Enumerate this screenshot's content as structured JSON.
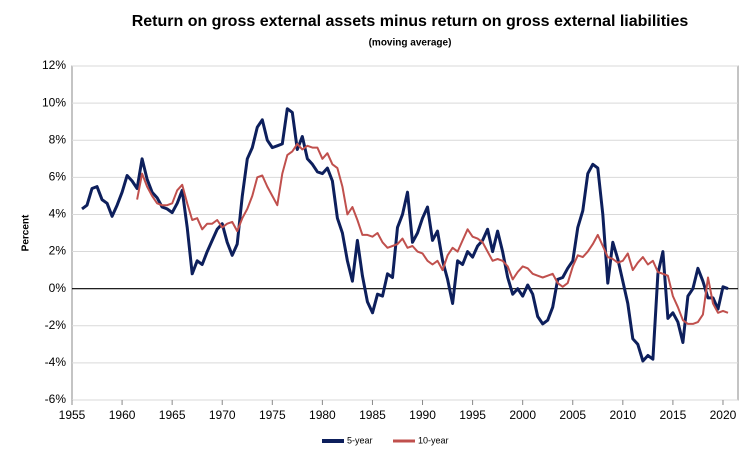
{
  "chart_data": {
    "type": "line",
    "title": "Return on gross external assets minus return on gross external liabilities",
    "subtitle": "(moving average)",
    "ylabel": "Percent",
    "xlim": [
      1955,
      2021.5
    ],
    "xticks": [
      1955,
      1960,
      1965,
      1970,
      1975,
      1980,
      1985,
      1990,
      1995,
      2000,
      2005,
      2010,
      2015,
      2020
    ],
    "ylim": [
      -6,
      12
    ],
    "yticks": [
      {
        "value": -6,
        "label": "-6%"
      },
      {
        "value": -4,
        "label": "-4%"
      },
      {
        "value": -2,
        "label": "-2%"
      },
      {
        "value": 0,
        "label": "0%"
      },
      {
        "value": 2,
        "label": "2%"
      },
      {
        "value": 4,
        "label": "4%"
      },
      {
        "value": 6,
        "label": "6%"
      },
      {
        "value": 8,
        "label": "8%"
      },
      {
        "value": 10,
        "label": "10%"
      },
      {
        "value": 12,
        "label": "12%"
      }
    ],
    "grid": true,
    "legend": "bottom",
    "x": [
      1956,
      1956.5,
      1957,
      1957.5,
      1958,
      1958.5,
      1959,
      1959.5,
      1960,
      1960.5,
      1961,
      1961.5,
      1962,
      1962.5,
      1963,
      1963.5,
      1964,
      1964.5,
      1965,
      1965.5,
      1966,
      1966.5,
      1967,
      1967.5,
      1968,
      1968.5,
      1969,
      1969.5,
      1970,
      1970.5,
      1971,
      1971.5,
      1972,
      1972.5,
      1973,
      1973.5,
      1974,
      1974.5,
      1975,
      1975.5,
      1976,
      1976.5,
      1977,
      1977.5,
      1978,
      1978.5,
      1979,
      1979.5,
      1980,
      1980.5,
      1981,
      1981.5,
      1982,
      1982.5,
      1983,
      1983.5,
      1984,
      1984.5,
      1985,
      1985.5,
      1986,
      1986.5,
      1987,
      1987.5,
      1988,
      1988.5,
      1989,
      1989.5,
      1990,
      1990.5,
      1991,
      1991.5,
      1992,
      1992.5,
      1993,
      1993.5,
      1994,
      1994.5,
      1995,
      1995.5,
      1996,
      1996.5,
      1997,
      1997.5,
      1998,
      1998.5,
      1999,
      1999.5,
      2000,
      2000.5,
      2001,
      2001.5,
      2002,
      2002.5,
      2003,
      2003.5,
      2004,
      2004.5,
      2005,
      2005.5,
      2006,
      2006.5,
      2007,
      2007.5,
      2008,
      2008.5,
      2009,
      2009.5,
      2010,
      2010.5,
      2011,
      2011.5,
      2012,
      2012.5,
      2013,
      2013.5,
      2014,
      2014.5,
      2015,
      2015.5,
      2016,
      2016.5,
      2017,
      2017.5,
      2018,
      2018.5,
      2019,
      2019.5,
      2020,
      2020.5
    ],
    "series": [
      {
        "name": "5-year",
        "color": "#0d1f5c",
        "width": 3,
        "values": [
          4.3,
          4.5,
          5.4,
          5.5,
          4.8,
          4.6,
          3.9,
          4.5,
          5.2,
          6.1,
          5.8,
          5.4,
          7.0,
          5.9,
          5.2,
          4.9,
          4.4,
          4.3,
          4.1,
          4.6,
          5.3,
          3.3,
          0.8,
          1.5,
          1.3,
          2.0,
          2.6,
          3.2,
          3.5,
          2.5,
          1.8,
          2.4,
          5.0,
          7.0,
          7.6,
          8.7,
          9.1,
          8.0,
          7.6,
          7.7,
          7.8,
          9.7,
          9.5,
          7.5,
          8.2,
          7.0,
          6.7,
          6.3,
          6.2,
          6.5,
          5.8,
          3.8,
          3.0,
          1.5,
          0.4,
          2.6,
          0.7,
          -0.7,
          -1.3,
          -0.3,
          -0.4,
          0.8,
          0.6,
          3.3,
          4.0,
          5.2,
          2.5,
          3.0,
          3.8,
          4.4,
          2.6,
          3.1,
          1.5,
          0.5,
          -0.8,
          1.5,
          1.3,
          2.0,
          1.7,
          2.3,
          2.6,
          3.2,
          2.0,
          3.1,
          2.0,
          0.6,
          -0.3,
          0.0,
          -0.4,
          0.2,
          -0.3,
          -1.5,
          -1.9,
          -1.7,
          -1.0,
          0.5,
          0.6,
          1.1,
          1.5,
          3.3,
          4.2,
          6.2,
          6.7,
          6.5,
          4.0,
          0.3,
          2.5,
          1.6,
          0.4,
          -0.8,
          -2.7,
          -3.0,
          -3.9,
          -3.6,
          -3.8,
          0.8,
          2.0,
          -1.6,
          -1.3,
          -1.8,
          -2.9,
          -0.4,
          0.0,
          1.1,
          0.4,
          -0.5,
          -0.5,
          -1.1,
          0.1,
          0.0
        ]
      },
      {
        "name": "10-year",
        "color": "#c0504d",
        "width": 2,
        "values": [
          null,
          null,
          null,
          null,
          null,
          null,
          null,
          null,
          null,
          null,
          null,
          4.8,
          6.2,
          5.5,
          5.0,
          4.6,
          4.5,
          4.5,
          4.6,
          5.3,
          5.6,
          4.6,
          3.7,
          3.8,
          3.2,
          3.5,
          3.5,
          3.7,
          3.3,
          3.5,
          3.6,
          3.1,
          3.8,
          4.3,
          5.0,
          6.0,
          6.1,
          5.5,
          5.0,
          4.5,
          6.2,
          7.2,
          7.4,
          7.8,
          7.5,
          7.7,
          7.6,
          7.6,
          7.0,
          7.3,
          6.7,
          6.5,
          5.5,
          4.0,
          4.4,
          3.7,
          2.9,
          2.9,
          2.8,
          3.0,
          2.5,
          2.2,
          2.3,
          2.4,
          2.7,
          2.2,
          2.3,
          2.0,
          1.9,
          1.5,
          1.3,
          1.5,
          1.0,
          1.8,
          2.2,
          2.0,
          2.6,
          3.2,
          2.8,
          2.7,
          2.5,
          2.0,
          1.5,
          1.6,
          1.5,
          1.2,
          0.5,
          0.9,
          1.2,
          1.1,
          0.8,
          0.7,
          0.6,
          0.7,
          0.8,
          0.3,
          0.1,
          0.3,
          1.2,
          1.8,
          1.7,
          2.0,
          2.4,
          2.9,
          2.3,
          1.7,
          1.6,
          1.4,
          1.5,
          1.9,
          1.0,
          1.4,
          1.7,
          1.3,
          1.5,
          0.9,
          0.8,
          0.7,
          -0.4,
          -1.0,
          -1.7,
          -1.9,
          -1.9,
          -1.8,
          -1.4,
          0.6,
          -0.8,
          -1.3,
          -1.2,
          -1.3
        ]
      }
    ]
  }
}
